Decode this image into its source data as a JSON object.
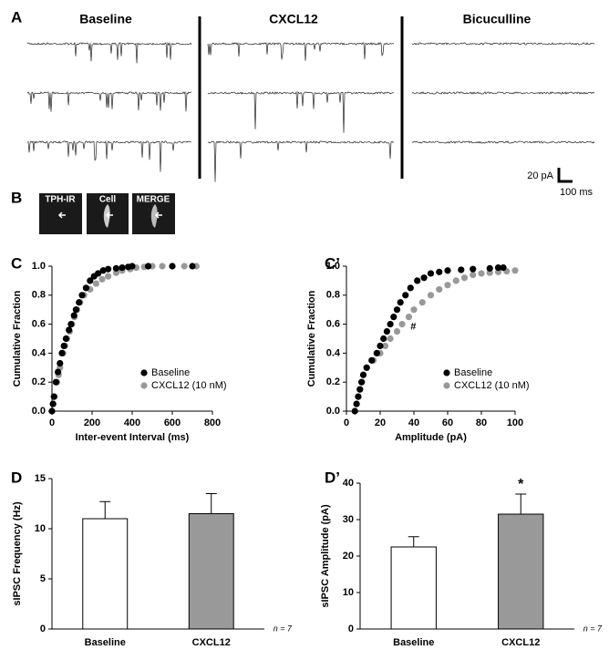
{
  "panel_a": {
    "label": "A",
    "conditions": [
      "Baseline",
      "CXCL12",
      "Bicuculline"
    ],
    "scale_bar": {
      "current": "20 pA",
      "time": "100 ms"
    }
  },
  "panel_b": {
    "label": "B",
    "images": [
      "TPH-IR",
      "Cell",
      "MERGE"
    ]
  },
  "chart_data": [
    {
      "type": "scatter",
      "panel_label": "C",
      "xlabel": "Inter-event Interval (ms)",
      "ylabel": "Cumulative Fraction",
      "xlim": [
        0,
        800
      ],
      "xticks": [
        0,
        200,
        400,
        600,
        800
      ],
      "ylim": [
        0,
        1
      ],
      "yticks": [
        {
          "value": 0,
          "label": "0.0"
        },
        0.2,
        0.4,
        0.6,
        0.8,
        {
          "value": 1,
          "label": "1.0"
        }
      ],
      "legend": "lower right",
      "series": [
        {
          "name": "Baseline",
          "color": "#000000",
          "x": [
            0,
            5,
            10,
            20,
            30,
            40,
            50,
            60,
            70,
            85,
            95,
            110,
            120,
            135,
            150,
            170,
            190,
            210,
            230,
            255,
            280,
            320,
            350,
            380,
            400,
            480,
            600,
            700
          ],
          "values": [
            0,
            0.05,
            0.1,
            0.2,
            0.27,
            0.33,
            0.4,
            0.45,
            0.5,
            0.56,
            0.6,
            0.66,
            0.7,
            0.75,
            0.8,
            0.85,
            0.9,
            0.93,
            0.95,
            0.97,
            0.98,
            0.985,
            0.99,
            0.995,
            1,
            1,
            1,
            1
          ]
        },
        {
          "name": "CXCL12 (10 nM)",
          "color": "#999999",
          "x": [
            0,
            6,
            12,
            25,
            33,
            40,
            55,
            65,
            75,
            88,
            100,
            112,
            125,
            140,
            160,
            190,
            220,
            250,
            280,
            320,
            350,
            390,
            420,
            460,
            500,
            550,
            600,
            660,
            720
          ],
          "values": [
            0,
            0.05,
            0.1,
            0.2,
            0.25,
            0.3,
            0.4,
            0.45,
            0.5,
            0.55,
            0.6,
            0.65,
            0.7,
            0.75,
            0.8,
            0.84,
            0.88,
            0.91,
            0.93,
            0.955,
            0.97,
            0.98,
            0.99,
            0.995,
            1,
            1,
            1,
            1,
            1
          ]
        }
      ]
    },
    {
      "type": "scatter",
      "panel_label": "C’",
      "xlabel": "Amplitude (pA)",
      "ylabel": "Cumulative Fraction",
      "xlim": [
        0,
        100
      ],
      "xticks": [
        0,
        20,
        40,
        60,
        80,
        100
      ],
      "ylim": [
        0,
        1
      ],
      "yticks": [
        {
          "value": 0,
          "label": "0.0"
        },
        0.2,
        0.4,
        0.6,
        0.8,
        {
          "value": 1,
          "label": "1.0"
        }
      ],
      "legend": "lower right",
      "annotations": [
        "#"
      ],
      "series": [
        {
          "name": "Baseline",
          "color": "#000000",
          "x": [
            5,
            6,
            7,
            8,
            9,
            10,
            12,
            15,
            18,
            20,
            22,
            24,
            26,
            28,
            30,
            32,
            35,
            38,
            42,
            46,
            50,
            55,
            60,
            68,
            75,
            85,
            90,
            93
          ],
          "values": [
            0,
            0.05,
            0.1,
            0.15,
            0.2,
            0.25,
            0.3,
            0.35,
            0.4,
            0.45,
            0.5,
            0.55,
            0.6,
            0.65,
            0.7,
            0.75,
            0.8,
            0.85,
            0.9,
            0.92,
            0.95,
            0.96,
            0.97,
            0.975,
            0.98,
            0.985,
            0.99,
            0.99
          ]
        },
        {
          "name": "CXCL12 (10 nM)",
          "color": "#999999",
          "x": [
            5,
            6,
            7,
            8,
            9,
            10,
            12,
            16,
            20,
            23,
            26,
            30,
            33,
            37,
            40,
            45,
            50,
            55,
            60,
            65,
            70,
            75,
            80,
            85,
            90,
            95,
            100
          ],
          "values": [
            0,
            0.05,
            0.1,
            0.15,
            0.2,
            0.25,
            0.3,
            0.35,
            0.4,
            0.45,
            0.5,
            0.55,
            0.6,
            0.65,
            0.7,
            0.75,
            0.8,
            0.84,
            0.87,
            0.9,
            0.92,
            0.94,
            0.95,
            0.955,
            0.96,
            0.965,
            0.97
          ]
        }
      ]
    },
    {
      "type": "bar",
      "panel_label": "D",
      "ylabel": "sIPSC Frequency (Hz)",
      "categories": [
        "Baseline",
        "CXCL12"
      ],
      "values": [
        11.0,
        11.5
      ],
      "errors": [
        1.7,
        2.0
      ],
      "colors": [
        "#ffffff",
        "#999999"
      ],
      "ylim": [
        0,
        15
      ],
      "yticks": [
        0,
        5,
        10,
        15
      ],
      "note": "n = 7"
    },
    {
      "type": "bar",
      "panel_label": "D’",
      "ylabel": "sIPSC Amplitude (pA)",
      "categories": [
        "Baseline",
        "CXCL12"
      ],
      "values": [
        22.5,
        31.5
      ],
      "errors": [
        2.8,
        5.5
      ],
      "colors": [
        "#ffffff",
        "#999999"
      ],
      "ylim": [
        0,
        40
      ],
      "yticks": [
        0,
        10,
        20,
        30,
        40
      ],
      "note": "n = 7",
      "annotations": [
        "*"
      ]
    }
  ]
}
